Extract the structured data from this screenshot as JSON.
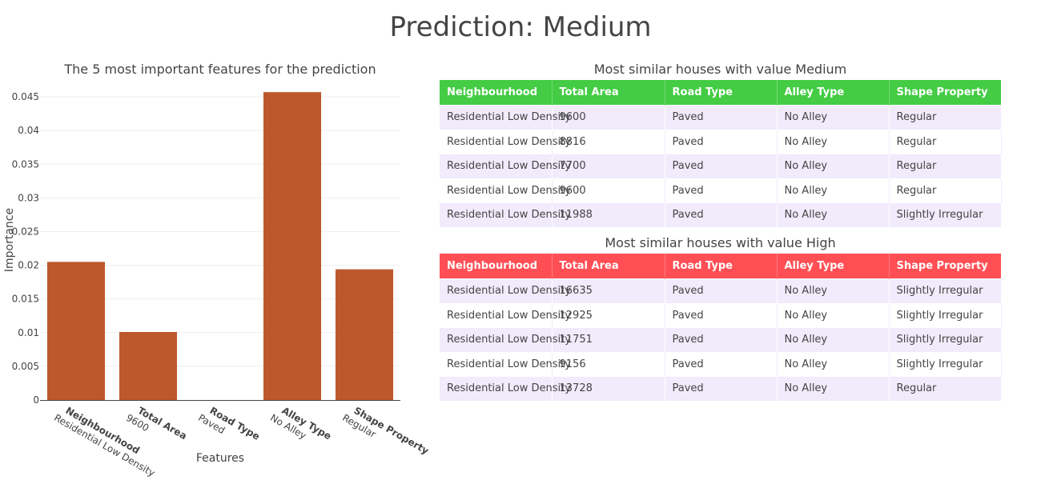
{
  "page_title": "Prediction: Medium",
  "chart_data": {
    "type": "bar",
    "title": "The 5 most important features for the prediction",
    "xlabel": "Features",
    "ylabel": "Importance",
    "categories": [
      "Neighbourhood",
      "Total Area",
      "Road Type",
      "Alley Type",
      "Shape Property"
    ],
    "category_values": [
      "Residential Low Density",
      "9600",
      "Paved",
      "No Alley",
      "Regular"
    ],
    "values": [
      0.0205,
      0.0101,
      0.0,
      0.0457,
      0.0194
    ],
    "ylim": [
      0,
      0.0475
    ],
    "yticks": [
      0,
      0.005,
      0.01,
      0.015,
      0.02,
      0.025,
      0.03,
      0.035,
      0.04,
      0.045
    ],
    "ytick_labels": [
      "0",
      "0.005",
      "0.01",
      "0.015",
      "0.02",
      "0.025",
      "0.03",
      "0.035",
      "0.04",
      "0.045"
    ],
    "bar_color": "#bd582c",
    "grid": true
  },
  "tables": {
    "medium": {
      "title": "Most similar houses with value Medium",
      "header_color": "#44cc44",
      "columns": [
        "Neighbourhood",
        "Total Area",
        "Road Type",
        "Alley Type",
        "Shape Property"
      ],
      "rows": [
        [
          "Residential Low Density",
          "9600",
          "Paved",
          "No Alley",
          "Regular"
        ],
        [
          "Residential Low Density",
          "8816",
          "Paved",
          "No Alley",
          "Regular"
        ],
        [
          "Residential Low Density",
          "7700",
          "Paved",
          "No Alley",
          "Regular"
        ],
        [
          "Residential Low Density",
          "9600",
          "Paved",
          "No Alley",
          "Regular"
        ],
        [
          "Residential Low Density",
          "11988",
          "Paved",
          "No Alley",
          "Slightly Irregular"
        ]
      ]
    },
    "high": {
      "title": "Most similar houses with value High",
      "header_color": "#ff4f55",
      "columns": [
        "Neighbourhood",
        "Total Area",
        "Road Type",
        "Alley Type",
        "Shape Property"
      ],
      "rows": [
        [
          "Residential Low Density",
          "16635",
          "Paved",
          "No Alley",
          "Slightly Irregular"
        ],
        [
          "Residential Low Density",
          "12925",
          "Paved",
          "No Alley",
          "Slightly Irregular"
        ],
        [
          "Residential Low Density",
          "11751",
          "Paved",
          "No Alley",
          "Slightly Irregular"
        ],
        [
          "Residential Low Density",
          "9156",
          "Paved",
          "No Alley",
          "Slightly Irregular"
        ],
        [
          "Residential Low Density",
          "13728",
          "Paved",
          "No Alley",
          "Regular"
        ]
      ]
    }
  }
}
